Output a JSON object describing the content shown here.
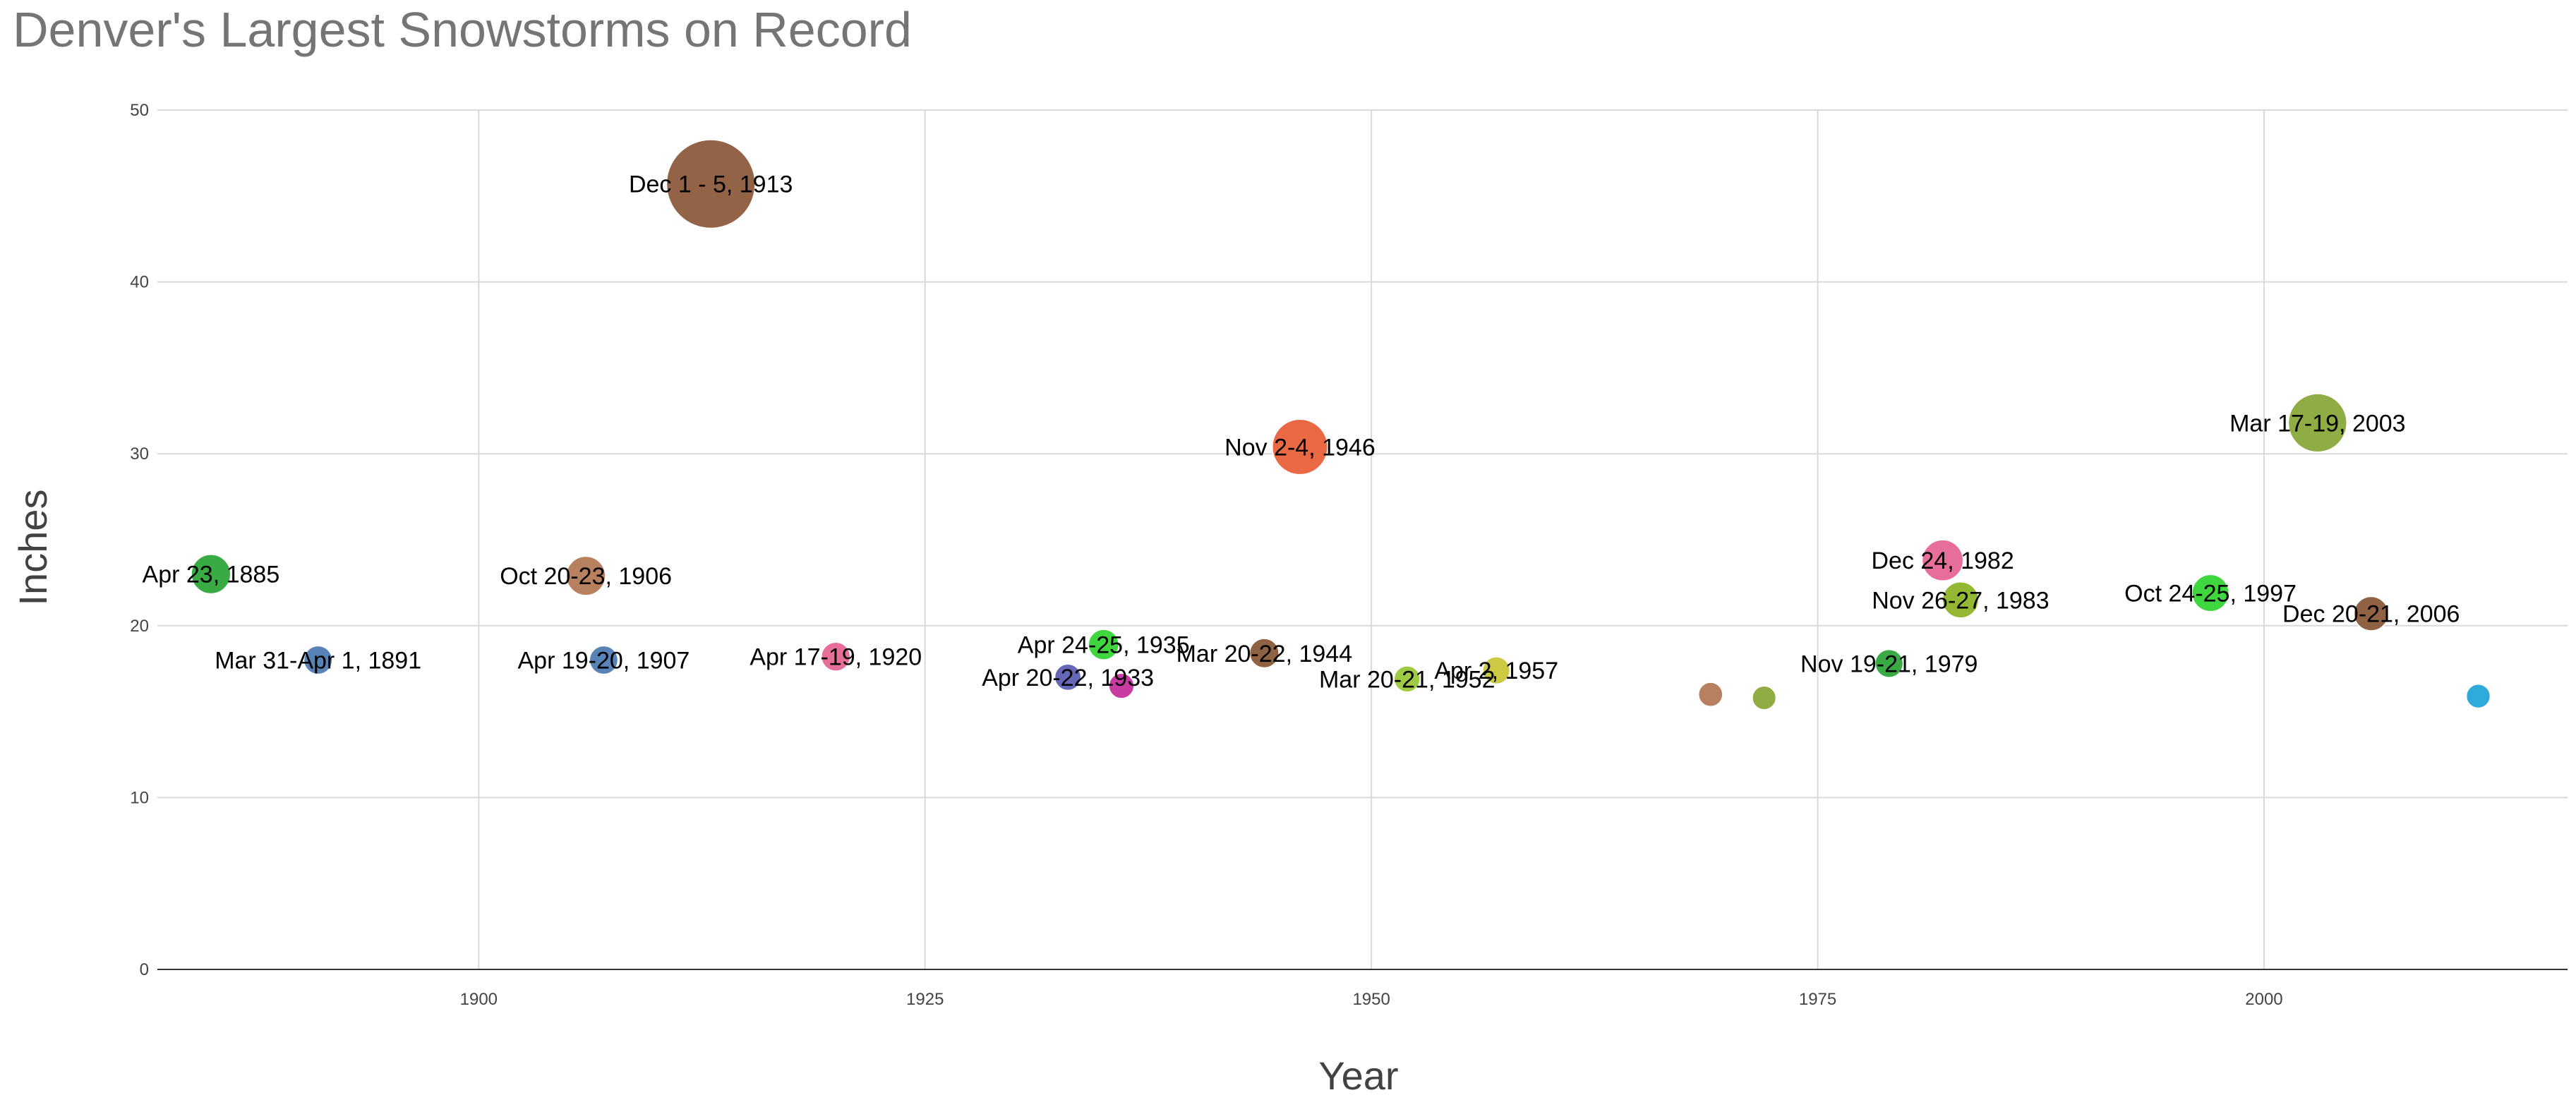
{
  "chart_data": {
    "type": "scatter",
    "title": "Denver's Largest Snowstorms on Record",
    "xlabel": "Year",
    "ylabel": "Inches",
    "xlim": [
      1882,
      2017
    ],
    "ylim": [
      0,
      50
    ],
    "xticks": [
      1900,
      1925,
      1950,
      1975,
      2000
    ],
    "yticks": [
      0,
      10,
      20,
      30,
      40,
      50
    ],
    "grid": true,
    "points": [
      {
        "label": "Apr 23, 1885",
        "x": 1885,
        "y": 23.0,
        "color": "#2fa63b",
        "size": 23.0
      },
      {
        "label": "Mar 31-Apr 1, 1891",
        "x": 1891,
        "y": 18.0,
        "color": "#4f7db3",
        "size": 18.0
      },
      {
        "label": "Oct 20-23, 1906",
        "x": 1906,
        "y": 22.9,
        "color": "#b47a57",
        "size": 22.9
      },
      {
        "label": "Apr 19-20, 1907",
        "x": 1907,
        "y": 18.0,
        "color": "#4f7db3",
        "size": 18.0
      },
      {
        "label": "Dec 1 - 5, 1913",
        "x": 1913,
        "y": 45.7,
        "color": "#8e5b3e",
        "size": 45.7
      },
      {
        "label": "Apr 17-19, 1920",
        "x": 1920,
        "y": 18.2,
        "color": "#e66795",
        "size": 18.2
      },
      {
        "label": "Apr 20-22, 1933",
        "x": 1933,
        "y": 17.0,
        "color": "#5d5fb5",
        "size": 17.0
      },
      {
        "label": "Apr 24-25, 1935",
        "x": 1935,
        "y": 18.9,
        "color": "#35d436",
        "size": 18.9
      },
      {
        "label": "",
        "x": 1936,
        "y": 16.5,
        "color": "#c6319d",
        "size": 16.5
      },
      {
        "label": "Mar 20-22, 1944",
        "x": 1944,
        "y": 18.4,
        "color": "#8b5a3a",
        "size": 18.4
      },
      {
        "label": "Nov 2-4, 1946",
        "x": 1946,
        "y": 30.4,
        "color": "#e8613a",
        "size": 30.4
      },
      {
        "label": "Mar 20-21, 1952",
        "x": 1952,
        "y": 16.9,
        "color": "#9ac93b",
        "size": 16.9
      },
      {
        "label": "Apr 2, 1957",
        "x": 1957,
        "y": 17.4,
        "color": "#c9c838",
        "size": 17.4
      },
      {
        "label": "",
        "x": 1969,
        "y": 16.0,
        "color": "#b47a57",
        "size": 16.0
      },
      {
        "label": "",
        "x": 1972,
        "y": 15.8,
        "color": "#8aa83c",
        "size": 15.8
      },
      {
        "label": "Nov 19-21, 1979",
        "x": 1979,
        "y": 17.8,
        "color": "#2fa63b",
        "size": 17.8
      },
      {
        "label": "Dec 24, 1982",
        "x": 1982,
        "y": 23.8,
        "color": "#e66795",
        "size": 23.8
      },
      {
        "label": "Nov 26-27, 1983",
        "x": 1983,
        "y": 21.5,
        "color": "#8fb52a",
        "size": 21.5
      },
      {
        "label": "Oct 24-25, 1997",
        "x": 1997,
        "y": 21.9,
        "color": "#35d436",
        "size": 21.9
      },
      {
        "label": "Mar 17-19, 2003",
        "x": 2003,
        "y": 31.8,
        "color": "#8aa83c",
        "size": 31.8
      },
      {
        "label": "Dec 20-21, 2006",
        "x": 2006,
        "y": 20.7,
        "color": "#8b5a3a",
        "size": 20.7
      },
      {
        "label": "",
        "x": 2012,
        "y": 15.9,
        "color": "#25a6d9",
        "size": 15.9
      }
    ]
  }
}
